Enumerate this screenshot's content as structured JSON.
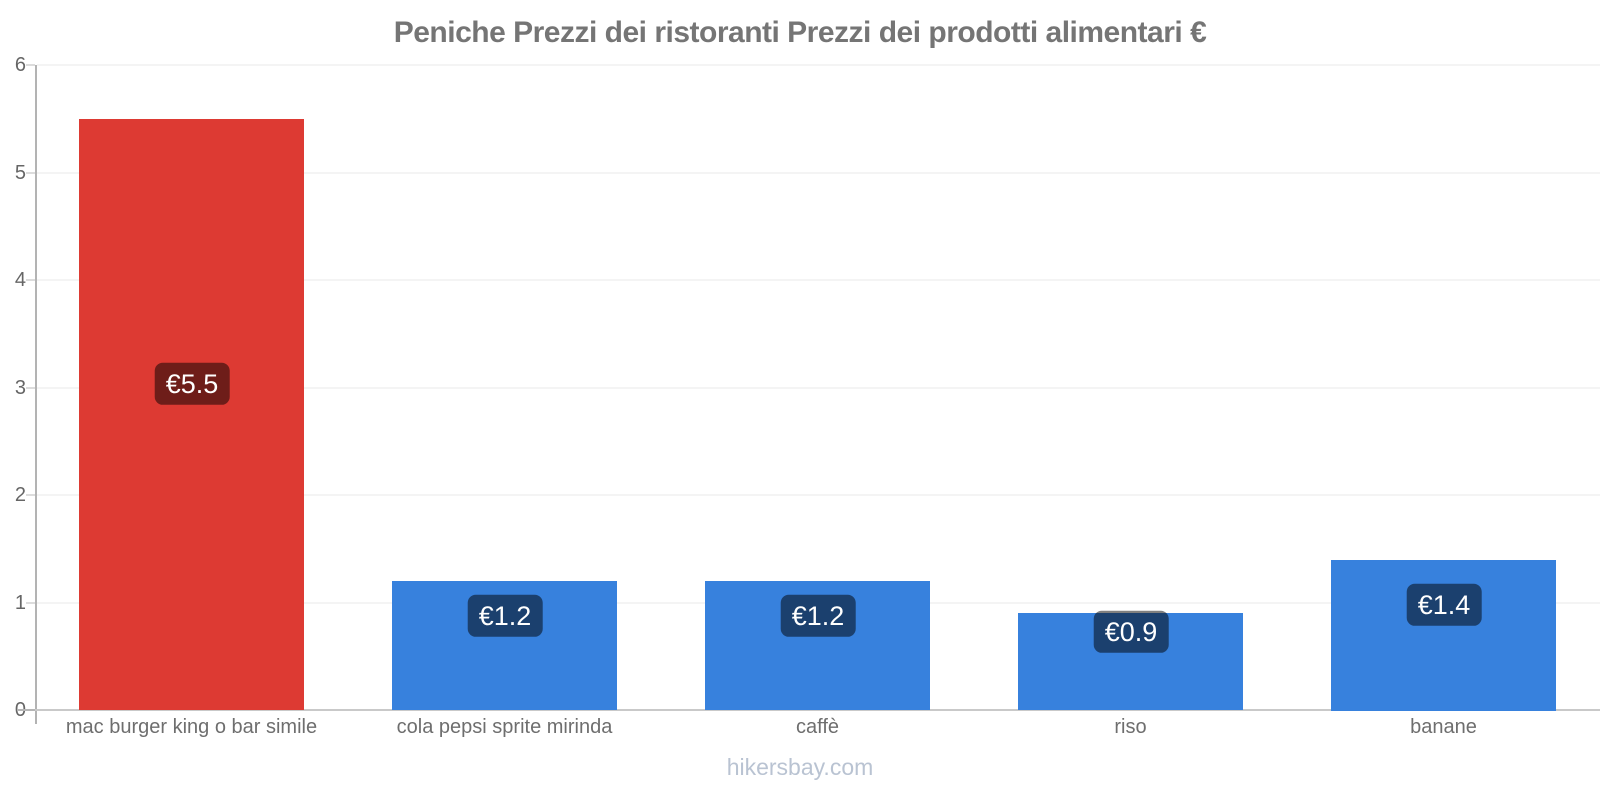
{
  "header": {
    "title": "Peniche Prezzi dei ristoranti Prezzi dei prodotti alimentari €",
    "title_color": "#757575"
  },
  "footer": {
    "text": "hikersbay.com",
    "color": "#b9c3d2"
  },
  "chart_data": {
    "type": "bar",
    "title": "Peniche Prezzi dei ristoranti Prezzi dei prodotti alimentari €",
    "categories": [
      "mac burger king o bar simile",
      "cola pepsi sprite mirinda",
      "caffè",
      "riso",
      "banane"
    ],
    "values": [
      5.5,
      1.2,
      1.2,
      0.9,
      1.4
    ],
    "value_labels": [
      "€5.5",
      "€1.2",
      "€1.2",
      "€0.9",
      "€1.4"
    ],
    "currency": "€",
    "bar_colors": [
      "#dd3a33",
      "#3781dd",
      "#3781dd",
      "#3781dd",
      "#3781dd"
    ],
    "badge_bg": "rgba(0,0,0,0.5)",
    "badge_text_color": "#ffffff",
    "xlabel": "",
    "ylabel": "",
    "ylim": [
      0,
      6
    ],
    "yticks": [
      0,
      1,
      2,
      3,
      4,
      5,
      6
    ],
    "grid": true,
    "legend": false,
    "bar_width_ratio": 0.72,
    "axis_color": "#b3b3b3",
    "baseline_color": "#c9c9c9",
    "gridline_color": "#f4f4f4",
    "tick_label_color": "#666666",
    "category_label_color": "#6e6e6e"
  }
}
